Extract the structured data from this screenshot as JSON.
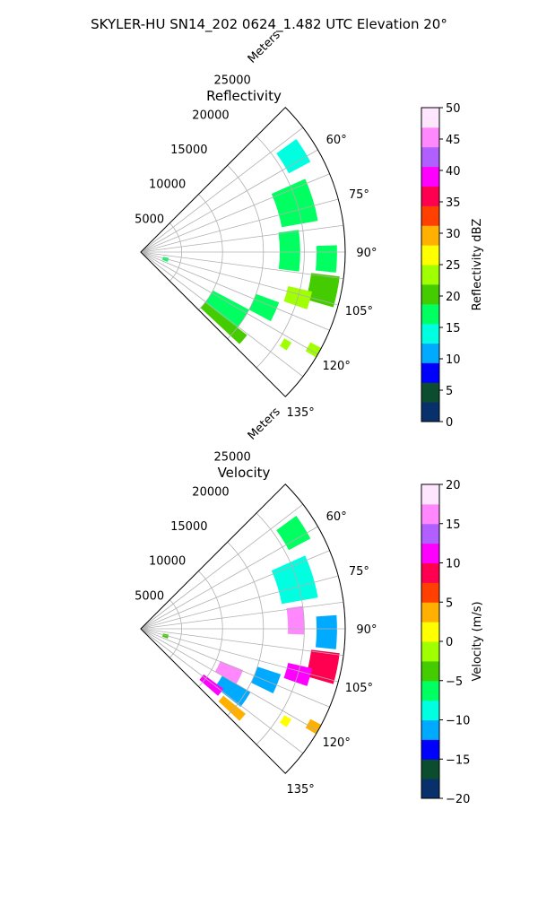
{
  "figure": {
    "suptitle": "SKYLER-HU  SN14_202  0624_1.482 UTC Elevation 20°"
  },
  "chart_data": [
    {
      "type": "heatmap",
      "projection": "polar-sector",
      "title": "Reflectivity",
      "range_label": "Meters",
      "range_ticks": [
        5000,
        10000,
        15000,
        20000,
        25000
      ],
      "range_tick_labels": [
        "5000",
        "10000",
        "15000",
        "20000",
        "25000"
      ],
      "rlim": [
        0,
        25000
      ],
      "azimuth_range_deg": [
        45,
        135
      ],
      "azimuth_ticks": [
        60,
        75,
        90,
        105,
        120,
        135
      ],
      "azimuth_tick_labels": [
        "60°",
        "75°",
        "90°",
        "105°",
        "120°",
        "135°"
      ],
      "grid": true,
      "colorbar": {
        "label": "Reflectivity dBZ",
        "vmin": 0,
        "vmax": 50,
        "ticks": [
          0,
          5,
          10,
          15,
          20,
          25,
          30,
          35,
          40,
          45,
          50
        ],
        "tick_labels": [
          "0",
          "5",
          "10",
          "15",
          "20",
          "25",
          "30",
          "35",
          "40",
          "45",
          "50"
        ],
        "palette": [
          "#08306b",
          "#0b4d2e",
          "#0000ff",
          "#00aaff",
          "#00ffe0",
          "#00ff60",
          "#44cc00",
          "#a0ff00",
          "#ffff00",
          "#ffb000",
          "#ff4000",
          "#ff0050",
          "#ff00ff",
          "#b060ff",
          "#ff88ff",
          "#ffe6ff"
        ]
      },
      "echoes": [
        {
          "az": [
            54,
            62
          ],
          "r": [
            20500,
            23500
          ],
          "value": 15
        },
        {
          "az": [
            66,
            80
          ],
          "r": [
            17500,
            22000
          ],
          "value": 17
        },
        {
          "az": [
            82,
            97
          ],
          "r": [
            17000,
            19500
          ],
          "value": 18
        },
        {
          "az": [
            88,
            96
          ],
          "r": [
            21500,
            24000
          ],
          "value": 18
        },
        {
          "az": [
            97,
            106
          ],
          "r": [
            21000,
            24500
          ],
          "value": 19
        },
        {
          "az": [
            103,
            109
          ],
          "r": [
            18500,
            21500
          ],
          "value": 24
        },
        {
          "az": [
            110,
            118
          ],
          "r": [
            15000,
            18000
          ],
          "value": 17
        },
        {
          "az": [
            118,
            128
          ],
          "r": [
            10000,
            15000
          ],
          "value": 18
        },
        {
          "az": [
            128,
            133
          ],
          "r": [
            10000,
            16500
          ],
          "value": 21
        },
        {
          "az": [
            121,
            124
          ],
          "r": [
            20500,
            21500
          ],
          "value": 22
        },
        {
          "az": [
            118,
            121
          ],
          "r": [
            23500,
            25000
          ],
          "value": 24
        },
        {
          "az": [
            102,
            110
          ],
          "r": [
            2800,
            3500
          ],
          "value": 16
        }
      ]
    },
    {
      "type": "heatmap",
      "projection": "polar-sector",
      "title": "Velocity",
      "range_label": "Meters",
      "range_ticks": [
        5000,
        10000,
        15000,
        20000,
        25000
      ],
      "range_tick_labels": [
        "5000",
        "10000",
        "15000",
        "20000",
        "25000"
      ],
      "rlim": [
        0,
        25000
      ],
      "azimuth_range_deg": [
        45,
        135
      ],
      "azimuth_ticks": [
        60,
        75,
        90,
        105,
        120,
        135
      ],
      "azimuth_tick_labels": [
        "60°",
        "75°",
        "90°",
        "105°",
        "120°",
        "135°"
      ],
      "grid": true,
      "colorbar": {
        "label": "Velocity (m/s)",
        "vmin": -20,
        "vmax": 20,
        "ticks": [
          -20,
          -15,
          -10,
          -5,
          0,
          5,
          10,
          15,
          20
        ],
        "tick_labels": [
          "−20",
          "−15",
          "−10",
          "−5",
          "0",
          "5",
          "10",
          "15",
          "20"
        ],
        "palette": [
          "#08306b",
          "#0b4d2e",
          "#0000ff",
          "#00aaff",
          "#00ffe0",
          "#00ff60",
          "#44cc00",
          "#a0ff00",
          "#ffff00",
          "#ffb000",
          "#ff4000",
          "#ff0050",
          "#ff00ff",
          "#b060ff",
          "#ff88ff",
          "#ffe6ff"
        ]
      },
      "echoes": [
        {
          "az": [
            54,
            62
          ],
          "r": [
            20500,
            23500
          ],
          "value": -7
        },
        {
          "az": [
            66,
            80
          ],
          "r": [
            17500,
            22000
          ],
          "value": -9
        },
        {
          "az": [
            82,
            92
          ],
          "r": [
            18000,
            20000
          ],
          "value": 15
        },
        {
          "az": [
            86,
            96
          ],
          "r": [
            21500,
            24000
          ],
          "value": -12
        },
        {
          "az": [
            97,
            106
          ],
          "r": [
            21000,
            24500
          ],
          "value": 9
        },
        {
          "az": [
            103,
            109
          ],
          "r": [
            18500,
            21500
          ],
          "value": 10
        },
        {
          "az": [
            108,
            116
          ],
          "r": [
            15000,
            18000
          ],
          "value": -11
        },
        {
          "az": [
            112,
            120
          ],
          "r": [
            10500,
            13500
          ],
          "value": 15
        },
        {
          "az": [
            120,
            128
          ],
          "r": [
            11500,
            15500
          ],
          "value": -12
        },
        {
          "az": [
            126,
            131
          ],
          "r": [
            9500,
            12500
          ],
          "value": 10
        },
        {
          "az": [
            129,
            133
          ],
          "r": [
            13000,
            16500
          ],
          "value": 3
        },
        {
          "az": [
            121,
            124
          ],
          "r": [
            20500,
            21500
          ],
          "value": 1
        },
        {
          "az": [
            118,
            121
          ],
          "r": [
            23500,
            25000
          ],
          "value": 4
        },
        {
          "az": [
            102,
            110
          ],
          "r": [
            2800,
            3500
          ],
          "value": -4
        }
      ]
    }
  ]
}
